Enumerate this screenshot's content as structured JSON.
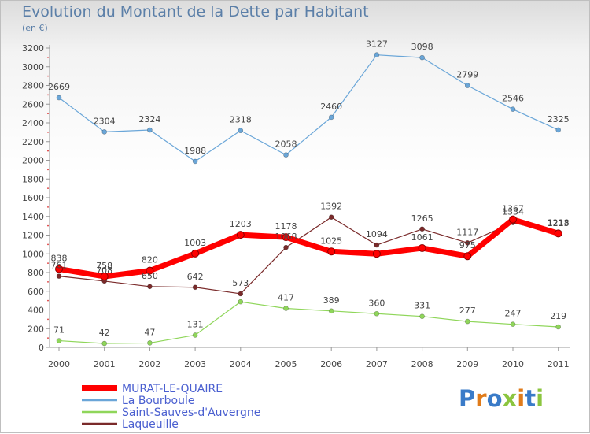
{
  "header": {
    "title": "Evolution du Montant de la Dette par Habitant",
    "unit": "(en €)"
  },
  "logo": {
    "text": "Proxiti",
    "colors": [
      "#3a7bc8",
      "#e07b1a",
      "#3a7bc8",
      "#8bc53f",
      "#e07b1a",
      "#3a7bc8",
      "#8bc53f"
    ]
  },
  "chart_data": {
    "type": "line",
    "x": [
      "2000",
      "2001",
      "2002",
      "2003",
      "2004",
      "2005",
      "2006",
      "2007",
      "2008",
      "2009",
      "2010",
      "2011"
    ],
    "ylim": [
      0,
      3200
    ],
    "yticks": [
      0,
      200,
      400,
      600,
      800,
      1000,
      1200,
      1400,
      1600,
      1800,
      2000,
      2200,
      2400,
      2600,
      2800,
      3000,
      3200
    ],
    "grid": false,
    "legend_position": "bottom-left",
    "series": [
      {
        "name": "MURAT-LE-QUAIRE",
        "color": "#ff0000",
        "values": [
          838,
          758,
          820,
          1003,
          1203,
          1178,
          1025,
          1000,
          1061,
          975,
          1367,
          1218
        ],
        "labels": [
          "838",
          "758",
          "820",
          "1003",
          "1203",
          "1178",
          "1025",
          "",
          "1061",
          "975",
          "1367",
          "1218"
        ]
      },
      {
        "name": "La Bourboule",
        "color": "#6aa6d8",
        "values": [
          2669,
          2304,
          2324,
          1988,
          2318,
          2058,
          2460,
          3127,
          3098,
          2799,
          2546,
          2325
        ],
        "labels": [
          "2669",
          "2304",
          "2324",
          "1988",
          "2318",
          "2058",
          "2460",
          "3127",
          "3098",
          "2799",
          "2546",
          "2325"
        ]
      },
      {
        "name": "Saint-Sauves-d'Auvergne",
        "color": "#8fd65a",
        "values": [
          71,
          42,
          47,
          131,
          487,
          417,
          389,
          360,
          331,
          277,
          247,
          219
        ],
        "labels": [
          "71",
          "42",
          "47",
          "131",
          "",
          "417",
          "389",
          "360",
          "331",
          "277",
          "247",
          "219"
        ]
      },
      {
        "name": "Laqueuille",
        "color": "#7a2a2a",
        "values": [
          761,
          708,
          650,
          642,
          573,
          1068,
          1392,
          1094,
          1265,
          1117,
          1334,
          1213
        ],
        "labels": [
          "761",
          "708",
          "650",
          "642",
          "573",
          "1068",
          "1392",
          "1094",
          "1265",
          "1117",
          "1334",
          "1213"
        ]
      }
    ]
  }
}
